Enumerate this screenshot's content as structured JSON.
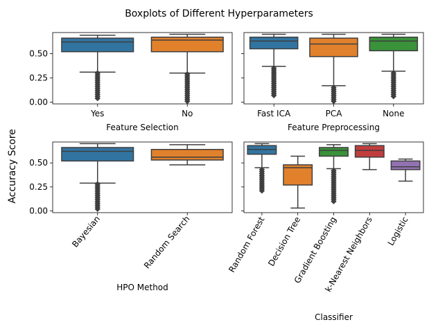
{
  "figure": {
    "title": "Boxplots of Different Hyperparameters",
    "ylabel": "Accuracy Score"
  },
  "chart_data": [
    {
      "type": "box",
      "xlabel": "Feature Selection",
      "ylim": [
        0.0,
        0.7
      ],
      "yticks": [
        "0.00",
        "0.25",
        "0.50"
      ],
      "ytick_labels_visible": true,
      "categories": [
        "Yes",
        "No"
      ],
      "colors": [
        "#3274a1",
        "#e1812c"
      ],
      "boxes": [
        {
          "q1": 0.52,
          "median": 0.62,
          "q3": 0.66,
          "whislo": 0.31,
          "whishi": 0.69,
          "fliers": [
            0.3,
            0.28,
            0.26,
            0.24,
            0.22,
            0.2,
            0.18,
            0.16,
            0.14,
            0.12,
            0.1,
            0.08,
            0.06,
            0.04
          ]
        },
        {
          "q1": 0.52,
          "median": 0.64,
          "q3": 0.67,
          "whislo": 0.3,
          "whishi": 0.7,
          "fliers": [
            0.29,
            0.27,
            0.25,
            0.23,
            0.21,
            0.19,
            0.17,
            0.15,
            0.13,
            0.11,
            0.09,
            0.07,
            0.05,
            0.03,
            0.01
          ]
        }
      ]
    },
    {
      "type": "box",
      "xlabel": "Feature Preprocessing",
      "ylim": [
        0.0,
        0.7
      ],
      "yticks": [
        "0.00",
        "0.25",
        "0.50"
      ],
      "ytick_labels_visible": false,
      "categories": [
        "Fast ICA",
        "PCA",
        "None"
      ],
      "colors": [
        "#3274a1",
        "#e1812c",
        "#3a923a"
      ],
      "boxes": [
        {
          "q1": 0.55,
          "median": 0.63,
          "q3": 0.67,
          "whislo": 0.37,
          "whishi": 0.7,
          "fliers": [
            0.35,
            0.33,
            0.31,
            0.29,
            0.27,
            0.25,
            0.23,
            0.21,
            0.19,
            0.17,
            0.15,
            0.13,
            0.11,
            0.09,
            0.07
          ]
        },
        {
          "q1": 0.47,
          "median": 0.6,
          "q3": 0.66,
          "whislo": 0.17,
          "whishi": 0.7,
          "fliers": [
            0.15,
            0.13,
            0.11,
            0.09,
            0.07,
            0.05,
            0.03,
            0.01
          ]
        },
        {
          "q1": 0.53,
          "median": 0.63,
          "q3": 0.67,
          "whislo": 0.32,
          "whishi": 0.7,
          "fliers": [
            0.3,
            0.28,
            0.26,
            0.24,
            0.22,
            0.2,
            0.18,
            0.16,
            0.14,
            0.12,
            0.1,
            0.08,
            0.06
          ]
        }
      ]
    },
    {
      "type": "box",
      "xlabel": "HPO Method",
      "ylim": [
        0.0,
        0.7
      ],
      "yticks": [
        "0.00",
        "0.25",
        "0.50"
      ],
      "ytick_labels_visible": true,
      "categories": [
        "Bayesian",
        "Random Search"
      ],
      "colors": [
        "#3274a1",
        "#e1812c"
      ],
      "boxes": [
        {
          "q1": 0.52,
          "median": 0.62,
          "q3": 0.66,
          "whislo": 0.29,
          "whishi": 0.7,
          "fliers": [
            0.28,
            0.26,
            0.24,
            0.22,
            0.2,
            0.18,
            0.16,
            0.14,
            0.12,
            0.1,
            0.08,
            0.06,
            0.04,
            0.02
          ]
        },
        {
          "q1": 0.53,
          "median": 0.56,
          "q3": 0.64,
          "whislo": 0.48,
          "whishi": 0.69,
          "fliers": []
        }
      ]
    },
    {
      "type": "box",
      "xlabel": "Classifier",
      "ylim": [
        0.0,
        0.7
      ],
      "yticks": [
        "0.00",
        "0.25",
        "0.50"
      ],
      "ytick_labels_visible": false,
      "categories": [
        "Random Forest",
        "Decision Tree",
        "Gradient Boosting",
        "k-Nearest Neighbors",
        "Logistic"
      ],
      "colors": [
        "#3274a1",
        "#e1812c",
        "#3a923a",
        "#c03d3e",
        "#9372b2"
      ],
      "boxes": [
        {
          "q1": 0.59,
          "median": 0.64,
          "q3": 0.68,
          "whislo": 0.45,
          "whishi": 0.7,
          "fliers": [
            0.43,
            0.41,
            0.39,
            0.37,
            0.35,
            0.33,
            0.31,
            0.29,
            0.27,
            0.25,
            0.23,
            0.21
          ]
        },
        {
          "q1": 0.27,
          "median": 0.45,
          "q3": 0.48,
          "whislo": 0.03,
          "whishi": 0.57,
          "fliers": []
        },
        {
          "q1": 0.57,
          "median": 0.63,
          "q3": 0.66,
          "whislo": 0.44,
          "whishi": 0.69,
          "fliers": [
            0.42,
            0.4,
            0.38,
            0.36,
            0.34,
            0.32,
            0.3,
            0.28,
            0.26,
            0.24,
            0.22,
            0.2,
            0.18,
            0.16,
            0.14,
            0.12,
            0.1
          ]
        },
        {
          "q1": 0.56,
          "median": 0.63,
          "q3": 0.68,
          "whislo": 0.43,
          "whishi": 0.7,
          "fliers": []
        },
        {
          "q1": 0.43,
          "median": 0.46,
          "q3": 0.52,
          "whislo": 0.31,
          "whishi": 0.54,
          "fliers": []
        }
      ]
    }
  ]
}
